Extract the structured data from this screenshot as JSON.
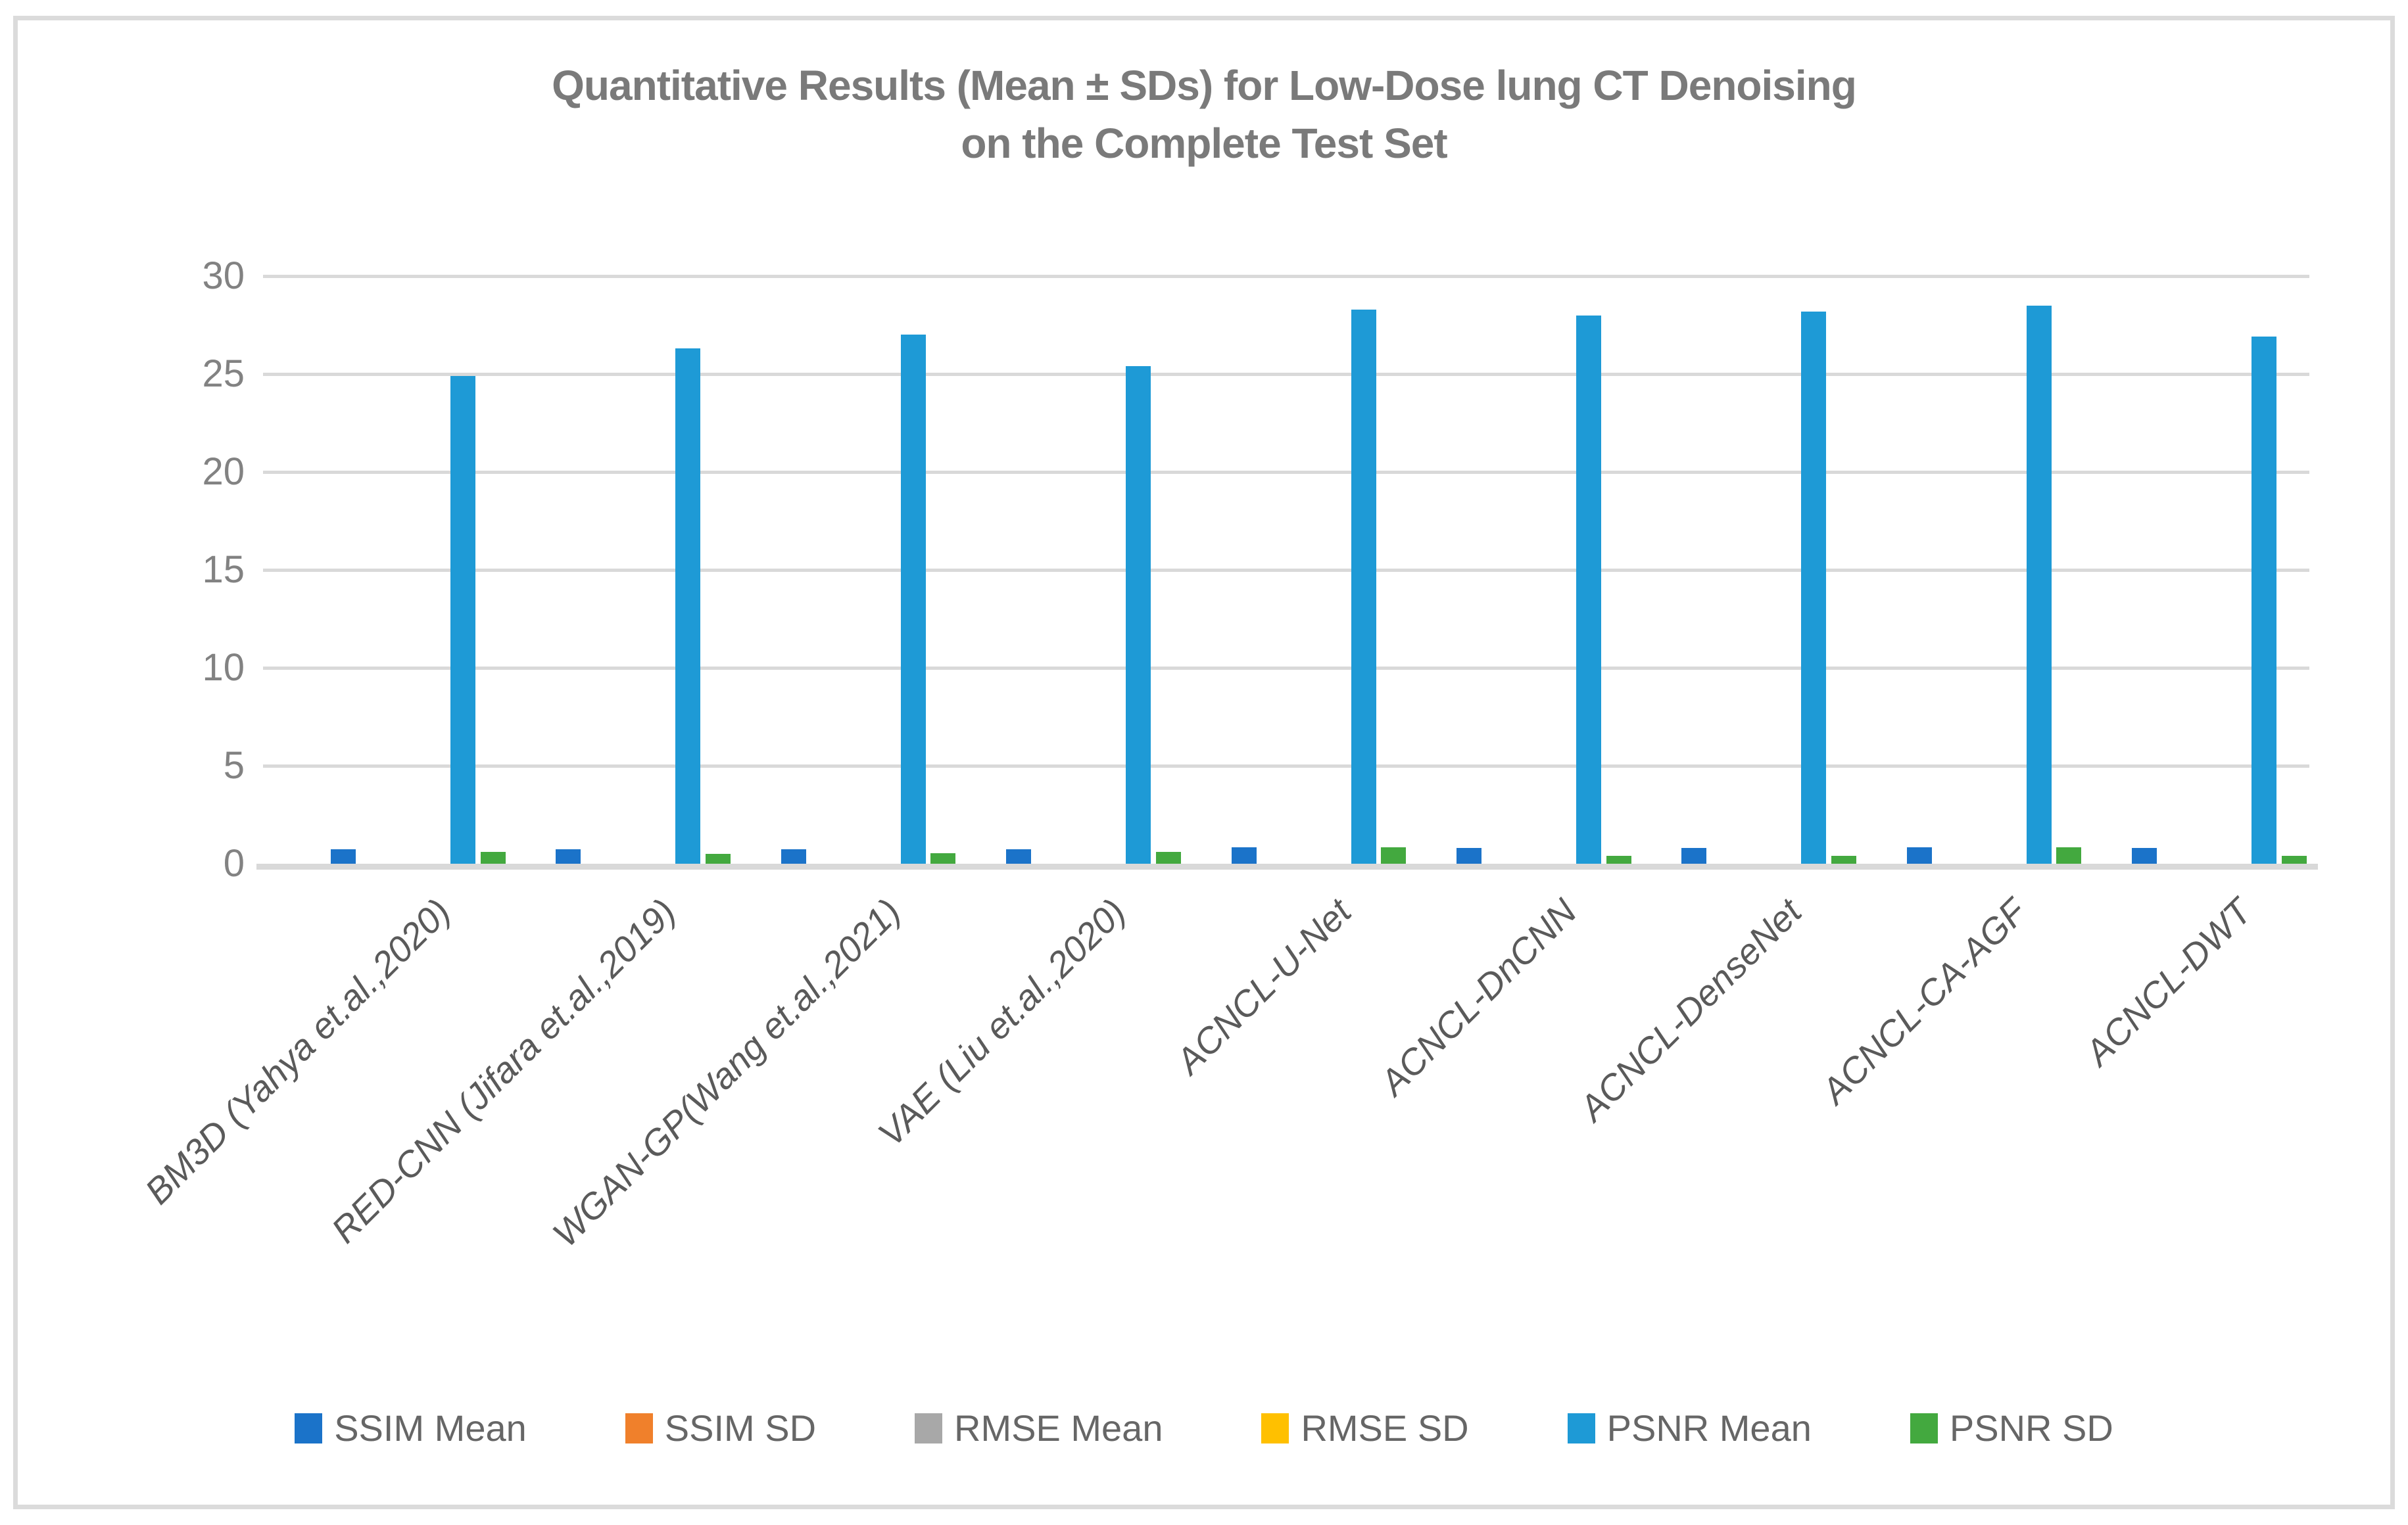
{
  "chart_data": {
    "type": "bar",
    "title_line1": "Quantitative Results (Mean ± SDs) for Low-Dose lung CT Denoising",
    "title_line2": "on the Complete Test Set",
    "categories": [
      "BM3D (Yahya et.al.,2020)",
      "RED-CNN (Jifara et.al.,2019)",
      "WGAN-GP(Wang et.al.,2021)",
      "VAE (Liu et.al.,2020)",
      "ACNCL-U-Net",
      "ACNCL-DnCNN",
      "ACNCL-DenseNet",
      "ACNCL-CA-AGF",
      "ACNCL-DWT"
    ],
    "series": [
      {
        "name": "SSIM Mean",
        "color": "#1B73C9",
        "values": [
          0.75,
          0.75,
          0.75,
          0.75,
          0.85,
          0.8,
          0.8,
          0.85,
          0.8
        ]
      },
      {
        "name": "SSIM SD",
        "color": "#F0802B",
        "values": [
          0,
          0,
          0,
          0,
          0,
          0,
          0,
          0,
          0
        ]
      },
      {
        "name": "RMSE Mean",
        "color": "#A8A8A8",
        "values": [
          0,
          0,
          0,
          0,
          0,
          0,
          0,
          0,
          0
        ]
      },
      {
        "name": "RMSE SD",
        "color": "#FFC000",
        "values": [
          0,
          0,
          0,
          0,
          0,
          0,
          0,
          0,
          0
        ]
      },
      {
        "name": "PSNR Mean",
        "color": "#1E9AD6",
        "values": [
          24.9,
          26.3,
          27.0,
          25.4,
          28.3,
          28.0,
          28.2,
          28.5,
          26.9
        ]
      },
      {
        "name": "PSNR SD",
        "color": "#43A93F",
        "values": [
          0.6,
          0.5,
          0.55,
          0.6,
          0.85,
          0.4,
          0.4,
          0.85,
          0.4
        ]
      }
    ],
    "ylim": [
      0,
      30
    ],
    "yticks": [
      0,
      5,
      10,
      15,
      20,
      25,
      30
    ],
    "grid": true,
    "legend_position": "bottom",
    "title_color": "#7A7A7A",
    "axis_label_color": "#828282",
    "category_label_color": "#5A5A5A",
    "gridline_color": "#D9D9D9",
    "legend_label_color": "#666666"
  }
}
